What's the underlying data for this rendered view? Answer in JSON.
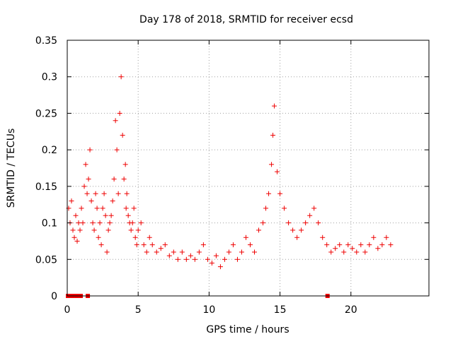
{
  "chart_data": {
    "type": "scatter",
    "title": "Day 178 of 2018, SRMTID for receiver ecsd",
    "xlabel": "GPS time / hours",
    "ylabel": "SRMTID / TECUs",
    "xlim": [
      0,
      25.5
    ],
    "ylim": [
      0,
      0.35
    ],
    "xticks": [
      0,
      5,
      10,
      15,
      20
    ],
    "xtick_labels": [
      "0",
      "5",
      "10",
      "15",
      "20"
    ],
    "yticks": [
      0,
      0.05,
      0.1,
      0.15,
      0.2,
      0.25,
      0.3,
      0.35
    ],
    "ytick_labels": [
      "0",
      "0.05",
      "0.1",
      "0.15",
      "0.2",
      "0.25",
      "0.3",
      "0.35"
    ],
    "grid": true,
    "marker": "plus",
    "color": "#ee0000",
    "zero_points": [
      0.05,
      0.35,
      0.65,
      0.95,
      1.45,
      18.35
    ],
    "series": [
      {
        "name": "SRMTID",
        "x": [
          0.1,
          0.2,
          0.3,
          0.4,
          0.5,
          0.6,
          0.7,
          0.8,
          0.9,
          1.0,
          1.1,
          1.2,
          1.3,
          1.4,
          1.5,
          1.6,
          1.7,
          1.8,
          1.9,
          2.0,
          2.1,
          2.2,
          2.3,
          2.4,
          2.5,
          2.6,
          2.7,
          2.8,
          2.9,
          3.0,
          3.1,
          3.2,
          3.3,
          3.4,
          3.5,
          3.6,
          3.7,
          3.8,
          3.9,
          4.0,
          4.1,
          4.15,
          4.2,
          4.3,
          4.4,
          4.5,
          4.6,
          4.7,
          4.8,
          4.9,
          5.0,
          5.2,
          5.4,
          5.6,
          5.8,
          6.0,
          6.3,
          6.6,
          6.9,
          7.2,
          7.5,
          7.8,
          8.1,
          8.4,
          8.7,
          9.0,
          9.3,
          9.6,
          9.9,
          10.2,
          10.5,
          10.8,
          11.1,
          11.4,
          11.7,
          12.0,
          12.3,
          12.6,
          12.9,
          13.2,
          13.5,
          13.8,
          14.0,
          14.2,
          14.4,
          14.5,
          14.6,
          14.8,
          15.0,
          15.3,
          15.6,
          15.9,
          16.2,
          16.5,
          16.8,
          17.1,
          17.4,
          17.7,
          18.0,
          18.3,
          18.6,
          18.9,
          19.2,
          19.5,
          19.8,
          20.1,
          20.4,
          20.7,
          21.0,
          21.3,
          21.6,
          21.9,
          22.2,
          22.5,
          22.8
        ],
        "y": [
          0.12,
          0.1,
          0.13,
          0.09,
          0.08,
          0.11,
          0.075,
          0.1,
          0.09,
          0.12,
          0.1,
          0.15,
          0.18,
          0.14,
          0.16,
          0.2,
          0.13,
          0.1,
          0.09,
          0.14,
          0.12,
          0.08,
          0.1,
          0.07,
          0.12,
          0.14,
          0.11,
          0.06,
          0.09,
          0.1,
          0.11,
          0.13,
          0.16,
          0.24,
          0.2,
          0.14,
          0.25,
          0.3,
          0.22,
          0.16,
          0.18,
          0.12,
          0.14,
          0.11,
          0.1,
          0.09,
          0.1,
          0.12,
          0.08,
          0.07,
          0.09,
          0.1,
          0.07,
          0.06,
          0.08,
          0.07,
          0.06,
          0.065,
          0.07,
          0.055,
          0.06,
          0.05,
          0.06,
          0.05,
          0.055,
          0.05,
          0.06,
          0.07,
          0.05,
          0.045,
          0.055,
          0.04,
          0.05,
          0.06,
          0.07,
          0.05,
          0.06,
          0.08,
          0.07,
          0.06,
          0.09,
          0.1,
          0.12,
          0.14,
          0.18,
          0.22,
          0.26,
          0.17,
          0.14,
          0.12,
          0.1,
          0.09,
          0.08,
          0.09,
          0.1,
          0.11,
          0.12,
          0.1,
          0.08,
          0.07,
          0.06,
          0.065,
          0.07,
          0.06,
          0.07,
          0.065,
          0.06,
          0.07,
          0.06,
          0.07,
          0.08,
          0.065,
          0.07,
          0.08,
          0.07
        ]
      }
    ]
  }
}
